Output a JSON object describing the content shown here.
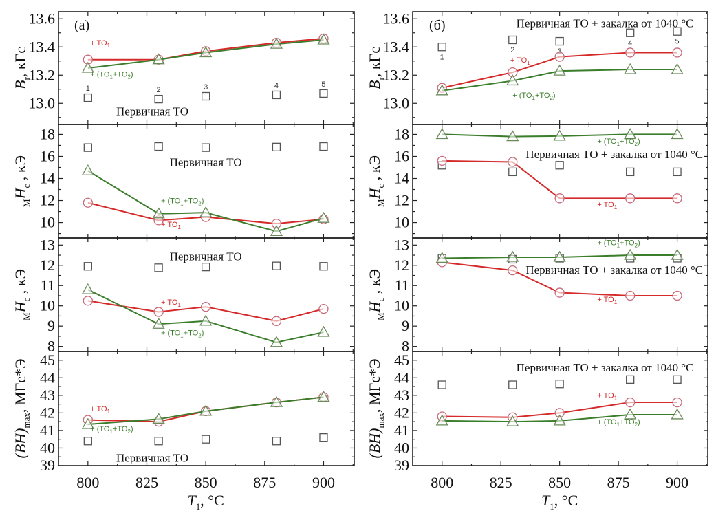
{
  "chart_data": {
    "type": "line",
    "title": "",
    "xlabel": "T1, °C",
    "xlabel_main": "T",
    "xlabel_sub": "1",
    "xlabel_unit": ", °C",
    "x": [
      800,
      830,
      850,
      880,
      900
    ],
    "xticks": [
      800,
      825,
      850,
      875,
      900
    ],
    "xlim": [
      787.5,
      913
    ],
    "grid": false,
    "colors": {
      "TO1": "#d42a2a",
      "TO1_TO2": "#3a7d2a",
      "primary": "#555555",
      "axis": "#222222"
    },
    "columns": [
      {
        "tag": "(a)",
        "rows": [
          {
            "quantity": "Br",
            "ylabel_main": "B",
            "ylabel_sub": "r",
            "ylabel_unit": ", кГс",
            "ylim": [
              12.85,
              13.65
            ],
            "yticks": [
              "13.0",
              "13.2",
              "13.4",
              "13.6"
            ],
            "annotation": "Первичная ТО",
            "label_TO1": "+ TO1",
            "label_TO1_TO2": "+ (TO1+TO2)",
            "point_numbers": [
              "1",
              "2",
              "3",
              "4",
              "5"
            ],
            "series": [
              {
                "name": "Первичная ТО",
                "key": "primary",
                "marker": "square",
                "line": false,
                "values": [
                  13.04,
                  13.03,
                  13.05,
                  13.06,
                  13.07
                ]
              },
              {
                "name": "+ TO1",
                "key": "TO1",
                "marker": "circle",
                "line": true,
                "values": [
                  13.31,
                  13.31,
                  13.37,
                  13.43,
                  13.46
                ]
              },
              {
                "name": "+ (TO1+TO2)",
                "key": "TO1_TO2",
                "marker": "triangle",
                "line": true,
                "values": [
                  13.25,
                  13.31,
                  13.36,
                  13.42,
                  13.45
                ]
              }
            ]
          },
          {
            "quantity": "MHc",
            "ylabel_main": "H",
            "ylabel_sub": "c",
            "ylabel_pre": "M",
            "ylabel_unit": " , кЭ",
            "ylim": [
              8.6,
              18.9
            ],
            "yticks": [
              "10",
              "12",
              "14",
              "16",
              "18"
            ],
            "annotation": "Первичная ТО",
            "label_TO1": "+ TO1",
            "label_TO1_TO2": "+ (TO1+TO2)",
            "series": [
              {
                "name": "Первичная ТО",
                "key": "primary",
                "marker": "square",
                "line": false,
                "values": [
                  16.8,
                  16.9,
                  16.8,
                  16.85,
                  16.9
                ]
              },
              {
                "name": "+ TO1",
                "key": "TO1",
                "marker": "circle",
                "line": true,
                "values": [
                  11.8,
                  10.2,
                  10.5,
                  9.9,
                  10.3
                ]
              },
              {
                "name": "+ (TO1+TO2)",
                "key": "TO1_TO2",
                "marker": "triangle",
                "line": true,
                "values": [
                  14.7,
                  10.8,
                  10.9,
                  9.2,
                  10.4
                ]
              }
            ]
          },
          {
            "quantity": "MHc",
            "ylabel_main": "H",
            "ylabel_sub": "c",
            "ylabel_pre": "M",
            "ylabel_unit": " , кЭ",
            "ylim": [
              7.75,
              13.35
            ],
            "yticks": [
              "8",
              "9",
              "10",
              "11",
              "12",
              "13"
            ],
            "annotation": "Первичная ТО",
            "label_TO1": "+ TO1",
            "label_TO1_TO2": "+ (TO1+TO2)",
            "series": [
              {
                "name": "Первичная ТО",
                "key": "primary",
                "marker": "square",
                "line": false,
                "values": [
                  11.95,
                  11.88,
                  11.92,
                  11.97,
                  11.95
                ]
              },
              {
                "name": "+ TO1",
                "key": "TO1",
                "marker": "circle",
                "line": true,
                "values": [
                  10.25,
                  9.7,
                  9.95,
                  9.25,
                  9.85
                ]
              },
              {
                "name": "+ (TO1+TO2)",
                "key": "TO1_TO2",
                "marker": "triangle",
                "line": true,
                "values": [
                  10.8,
                  9.1,
                  9.25,
                  8.2,
                  8.7
                ]
              }
            ]
          },
          {
            "quantity": "(BH)max",
            "ylabel_main": "(BH)",
            "ylabel_sub": "max",
            "ylabel_unit": ", МГс*Э",
            "ylim": [
              39,
              45.5
            ],
            "yticks": [
              "39",
              "40",
              "41",
              "42",
              "43",
              "44",
              "45"
            ],
            "annotation": "Первичная ТО",
            "label_TO1": "+ TO1",
            "label_TO1_TO2": "+ (TO1+TO2)",
            "series": [
              {
                "name": "Первичная ТО",
                "key": "primary",
                "marker": "square",
                "line": false,
                "values": [
                  40.4,
                  40.4,
                  40.5,
                  40.4,
                  40.6
                ]
              },
              {
                "name": "+ TO1",
                "key": "TO1",
                "marker": "circle",
                "line": true,
                "values": [
                  41.6,
                  41.5,
                  42.1,
                  42.6,
                  42.9
                ]
              },
              {
                "name": "+ (TO1+TO2)",
                "key": "TO1_TO2",
                "marker": "triangle",
                "line": true,
                "values": [
                  41.35,
                  41.65,
                  42.1,
                  42.6,
                  42.9
                ]
              }
            ]
          }
        ]
      },
      {
        "tag": "(б)",
        "rows": [
          {
            "quantity": "Br",
            "ylabel_main": "B",
            "ylabel_sub": "r",
            "ylabel_unit": ", кГс",
            "ylim": [
              12.85,
              13.65
            ],
            "yticks": [
              "13.0",
              "13.2",
              "13.4",
              "13.6"
            ],
            "annotation": "Первичная ТО + закалка от 1040 °C",
            "label_TO1": "+ TO1",
            "label_TO1_TO2": "+ (TO1+TO2)",
            "point_numbers": [
              "1",
              "2",
              "3",
              "4",
              "5"
            ],
            "series": [
              {
                "name": "Первичная ТО + закалка от 1040 °C",
                "key": "primary",
                "marker": "square",
                "line": false,
                "values": [
                  13.4,
                  13.45,
                  13.44,
                  13.5,
                  13.51
                ]
              },
              {
                "name": "+ TO1",
                "key": "TO1",
                "marker": "circle",
                "line": true,
                "values": [
                  13.11,
                  13.22,
                  13.33,
                  13.36,
                  13.36
                ]
              },
              {
                "name": "+ (TO1+TO2)",
                "key": "TO1_TO2",
                "marker": "triangle",
                "line": true,
                "values": [
                  13.09,
                  13.16,
                  13.23,
                  13.24,
                  13.24
                ]
              }
            ]
          },
          {
            "quantity": "MHc",
            "ylabel_main": "H",
            "ylabel_sub": "c",
            "ylabel_pre": "M",
            "ylabel_unit": " , кЭ",
            "ylim": [
              8.6,
              18.9
            ],
            "yticks": [
              "10",
              "12",
              "14",
              "16",
              "18"
            ],
            "annotation": "Первичная ТО + закалка от 1040 °C",
            "label_TO1": "+ TO1",
            "label_TO1_TO2": "+ (TO1+TO2)",
            "series": [
              {
                "name": "Первичная ТО + закалка от 1040 °C",
                "key": "primary",
                "marker": "square",
                "line": false,
                "values": [
                  15.2,
                  14.6,
                  15.2,
                  14.6,
                  14.6
                ]
              },
              {
                "name": "+ TO1",
                "key": "TO1",
                "marker": "circle",
                "line": true,
                "values": [
                  15.6,
                  15.5,
                  12.2,
                  12.2,
                  12.2
                ]
              },
              {
                "name": "+ (TO1+TO2)",
                "key": "TO1_TO2",
                "marker": "triangle",
                "line": true,
                "values": [
                  18.0,
                  17.8,
                  17.85,
                  18.0,
                  18.0
                ]
              }
            ]
          },
          {
            "quantity": "MHc",
            "ylabel_main": "H",
            "ylabel_sub": "c",
            "ylabel_pre": "M",
            "ylabel_unit": " , кЭ",
            "ylim": [
              7.75,
              13.35
            ],
            "yticks": [
              "8",
              "9",
              "10",
              "11",
              "12",
              "13"
            ],
            "annotation": "Первичная ТО + закалка от 1040 °C",
            "label_TO1": "+ TO1",
            "label_TO1_TO2": "+ (TO1+TO2)",
            "series": [
              {
                "name": "Первичная ТО + закалка от 1040 °C",
                "key": "primary",
                "marker": "square",
                "line": false,
                "values": [
                  12.35,
                  12.3,
                  12.35,
                  12.35,
                  12.35
                ]
              },
              {
                "name": "+ TO1",
                "key": "TO1",
                "marker": "circle",
                "line": true,
                "values": [
                  12.15,
                  11.75,
                  10.65,
                  10.5,
                  10.5
                ]
              },
              {
                "name": "+ (TO1+TO2)",
                "key": "TO1_TO2",
                "marker": "triangle",
                "line": true,
                "values": [
                  12.35,
                  12.4,
                  12.4,
                  12.5,
                  12.5
                ]
              }
            ]
          },
          {
            "quantity": "(BH)max",
            "ylabel_main": "(BH)",
            "ylabel_sub": "max",
            "ylabel_unit": ", МГс*Э",
            "ylim": [
              39,
              45.5
            ],
            "yticks": [
              "39",
              "40",
              "41",
              "42",
              "43",
              "44",
              "45"
            ],
            "annotation": "Первичная ТО + закалка от 1040 °C",
            "label_TO1": "+ TO1",
            "label_TO1_TO2": "+ (TO1+TO2)",
            "series": [
              {
                "name": "Первичная ТО + закалка от 1040 °C",
                "key": "primary",
                "marker": "square",
                "line": false,
                "values": [
                  43.6,
                  43.6,
                  43.65,
                  43.9,
                  43.9
                ]
              },
              {
                "name": "+ TO1",
                "key": "TO1",
                "marker": "circle",
                "line": true,
                "values": [
                  41.8,
                  41.75,
                  42.0,
                  42.6,
                  42.6
                ]
              },
              {
                "name": "+ (TO1+TO2)",
                "key": "TO1_TO2",
                "marker": "triangle",
                "line": true,
                "values": [
                  41.55,
                  41.5,
                  41.55,
                  41.9,
                  41.9
                ]
              }
            ]
          }
        ]
      }
    ]
  }
}
